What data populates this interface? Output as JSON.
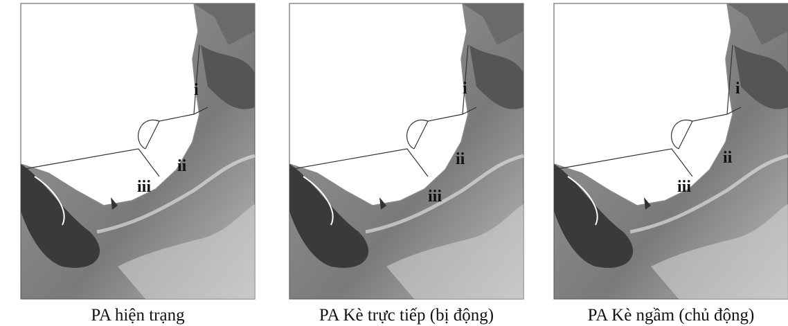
{
  "panels": [
    {
      "caption": "PA hiện trạng",
      "labels": [
        "i",
        "ii",
        "iii"
      ]
    },
    {
      "caption": "PA Kè trực tiếp (bị động)",
      "labels": [
        "i",
        "ii",
        "iii"
      ]
    },
    {
      "caption": "PA Kè ngầm  (chủ động)",
      "labels": [
        "i",
        "ii",
        "iii"
      ]
    }
  ]
}
